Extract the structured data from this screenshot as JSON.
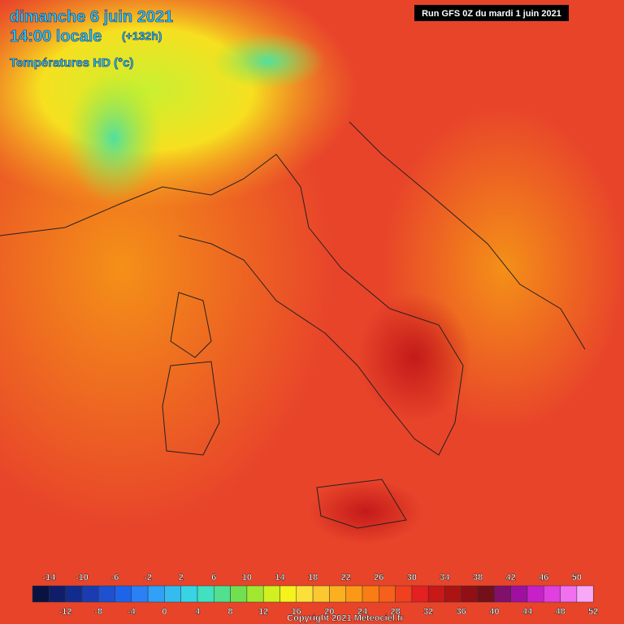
{
  "header": {
    "date": "dimanche 6 juin 2021",
    "time": "14:00 locale",
    "lead": "(+132h)",
    "field": "Températures HD (°c)",
    "run": "Run GFS 0Z du mardi 1 juin 2021"
  },
  "legend": {
    "top_labels": [
      -14,
      -10,
      -6,
      -2,
      2,
      6,
      10,
      14,
      18,
      22,
      26,
      30,
      34,
      38,
      42,
      46,
      50
    ],
    "bottom_labels": [
      -12,
      -8,
      -4,
      0,
      4,
      8,
      12,
      16,
      20,
      24,
      28,
      32,
      36,
      40,
      44,
      48,
      52
    ],
    "lower": -16,
    "step": 2,
    "colors": [
      "#0a1240",
      "#101e6a",
      "#122c8e",
      "#1a3cb0",
      "#1e50d0",
      "#1e64ea",
      "#2a80f4",
      "#30a0f8",
      "#34bcf0",
      "#38d4e4",
      "#40e0c0",
      "#50e090",
      "#70e050",
      "#a0e830",
      "#d0f020",
      "#f6f21e",
      "#fce03a",
      "#fcc830",
      "#fcb020",
      "#fc9818",
      "#fa7c14",
      "#f6601a",
      "#f0401e",
      "#e42020",
      "#c81818",
      "#ac1414",
      "#901016",
      "#74101a",
      "#80106a",
      "#a010a0",
      "#c820c8",
      "#e040e0",
      "#f070f0",
      "#f8a8f8"
    ]
  },
  "footer": {
    "copyright": "Copyright 2021 Meteociel.fr"
  }
}
